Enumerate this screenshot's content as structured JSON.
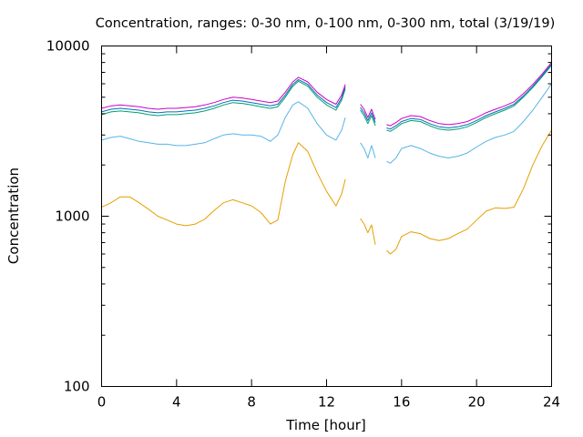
{
  "chart_data": {
    "type": "line",
    "title": "Concentration, ranges: 0-30 nm, 0-100 nm, 0-300 nm, total (3/19/19)",
    "xlabel": "Time [hour]",
    "ylabel": "Concentration",
    "xlim": [
      0,
      24
    ],
    "ylim": [
      100,
      10000
    ],
    "yscale": "log",
    "grid": false,
    "legend": "none",
    "x_ticks": [
      0,
      4,
      8,
      12,
      16,
      20,
      24
    ],
    "x_tick_labels": [
      "0",
      "4",
      "8",
      "12",
      "16",
      "20",
      "24"
    ],
    "y_ticks": [
      100,
      1000,
      10000
    ],
    "y_tick_labels": [
      "100",
      "1000",
      "10000"
    ],
    "series": [
      {
        "color": "#e69f00",
        "points": [
          [
            0,
            1130
          ],
          [
            0.5,
            1200
          ],
          [
            1,
            1300
          ],
          [
            1.5,
            1300
          ],
          [
            2,
            1200
          ],
          [
            2.5,
            1100
          ],
          [
            3,
            1000
          ],
          [
            3.5,
            950
          ],
          [
            4,
            900
          ],
          [
            4.5,
            880
          ],
          [
            5,
            900
          ],
          [
            5.5,
            960
          ],
          [
            6,
            1080
          ],
          [
            6.5,
            1200
          ],
          [
            7,
            1250
          ],
          [
            7.5,
            1200
          ],
          [
            8,
            1150
          ],
          [
            8.5,
            1050
          ],
          [
            9,
            900
          ],
          [
            9.4,
            950
          ],
          [
            9.8,
            1600
          ],
          [
            10.2,
            2300
          ],
          [
            10.5,
            2700
          ],
          [
            11,
            2400
          ],
          [
            11.5,
            1800
          ],
          [
            12,
            1400
          ],
          [
            12.5,
            1150
          ],
          [
            12.8,
            1350
          ],
          [
            13,
            1650
          ],
          null,
          [
            13.8,
            970
          ],
          [
            14,
            900
          ],
          [
            14.2,
            800
          ],
          [
            14.4,
            890
          ],
          [
            14.6,
            680
          ],
          null,
          [
            15.2,
            630
          ],
          [
            15.4,
            600
          ],
          [
            15.7,
            640
          ],
          [
            16,
            760
          ],
          [
            16.5,
            810
          ],
          [
            17,
            790
          ],
          [
            17.5,
            740
          ],
          [
            18,
            720
          ],
          [
            18.5,
            740
          ],
          [
            19,
            790
          ],
          [
            19.5,
            840
          ],
          [
            20,
            950
          ],
          [
            20.5,
            1070
          ],
          [
            21,
            1120
          ],
          [
            21.5,
            1110
          ],
          [
            22,
            1130
          ],
          [
            22.5,
            1450
          ],
          [
            23,
            2000
          ],
          [
            23.5,
            2600
          ],
          [
            24,
            3200
          ]
        ]
      },
      {
        "color": "#56b4e9",
        "points": [
          [
            0,
            2800
          ],
          [
            0.5,
            2900
          ],
          [
            1,
            2950
          ],
          [
            1.5,
            2850
          ],
          [
            2,
            2750
          ],
          [
            2.5,
            2700
          ],
          [
            3,
            2650
          ],
          [
            3.5,
            2650
          ],
          [
            4,
            2600
          ],
          [
            4.5,
            2600
          ],
          [
            5,
            2650
          ],
          [
            5.5,
            2700
          ],
          [
            6,
            2850
          ],
          [
            6.5,
            3000
          ],
          [
            7,
            3050
          ],
          [
            7.5,
            3000
          ],
          [
            8,
            3000
          ],
          [
            8.5,
            2950
          ],
          [
            9,
            2750
          ],
          [
            9.4,
            3000
          ],
          [
            9.8,
            3800
          ],
          [
            10.2,
            4500
          ],
          [
            10.5,
            4700
          ],
          [
            11,
            4300
          ],
          [
            11.5,
            3500
          ],
          [
            12,
            3000
          ],
          [
            12.5,
            2800
          ],
          [
            12.8,
            3200
          ],
          [
            13,
            3800
          ],
          null,
          [
            13.8,
            2700
          ],
          [
            14,
            2500
          ],
          [
            14.2,
            2200
          ],
          [
            14.4,
            2600
          ],
          [
            14.6,
            2200
          ],
          null,
          [
            15.2,
            2100
          ],
          [
            15.4,
            2050
          ],
          [
            15.7,
            2200
          ],
          [
            16,
            2500
          ],
          [
            16.5,
            2600
          ],
          [
            17,
            2500
          ],
          [
            17.5,
            2350
          ],
          [
            18,
            2250
          ],
          [
            18.5,
            2200
          ],
          [
            19,
            2250
          ],
          [
            19.5,
            2350
          ],
          [
            20,
            2550
          ],
          [
            20.5,
            2750
          ],
          [
            21,
            2900
          ],
          [
            21.5,
            3000
          ],
          [
            22,
            3150
          ],
          [
            22.5,
            3600
          ],
          [
            23,
            4200
          ],
          [
            23.5,
            5000
          ],
          [
            24,
            6000
          ]
        ]
      },
      {
        "color": "#009e73",
        "points": [
          [
            0,
            3950
          ],
          [
            0.5,
            4100
          ],
          [
            1,
            4150
          ],
          [
            1.5,
            4100
          ],
          [
            2,
            4050
          ],
          [
            2.5,
            3950
          ],
          [
            3,
            3900
          ],
          [
            3.5,
            3950
          ],
          [
            4,
            3950
          ],
          [
            4.5,
            4000
          ],
          [
            5,
            4050
          ],
          [
            5.5,
            4150
          ],
          [
            6,
            4300
          ],
          [
            6.5,
            4500
          ],
          [
            7,
            4650
          ],
          [
            7.5,
            4600
          ],
          [
            8,
            4500
          ],
          [
            8.5,
            4400
          ],
          [
            9,
            4300
          ],
          [
            9.4,
            4400
          ],
          [
            9.8,
            5000
          ],
          [
            10.2,
            5800
          ],
          [
            10.5,
            6200
          ],
          [
            11,
            5800
          ],
          [
            11.5,
            5000
          ],
          [
            12,
            4500
          ],
          [
            12.5,
            4200
          ],
          [
            12.8,
            4800
          ],
          [
            13,
            5600
          ],
          null,
          [
            13.8,
            4200
          ],
          [
            14,
            3900
          ],
          [
            14.2,
            3500
          ],
          [
            14.4,
            3900
          ],
          [
            14.6,
            3400
          ],
          null,
          [
            15.2,
            3200
          ],
          [
            15.4,
            3150
          ],
          [
            15.7,
            3300
          ],
          [
            16,
            3500
          ],
          [
            16.5,
            3650
          ],
          [
            17,
            3600
          ],
          [
            17.5,
            3400
          ],
          [
            18,
            3250
          ],
          [
            18.5,
            3200
          ],
          [
            19,
            3250
          ],
          [
            19.5,
            3350
          ],
          [
            20,
            3550
          ],
          [
            20.5,
            3800
          ],
          [
            21,
            4000
          ],
          [
            21.5,
            4200
          ],
          [
            22,
            4450
          ],
          [
            22.5,
            5000
          ],
          [
            23,
            5700
          ],
          [
            23.5,
            6600
          ],
          [
            24,
            7700
          ]
        ]
      },
      {
        "color": "#0072b2",
        "points": [
          [
            0,
            4100
          ],
          [
            0.5,
            4250
          ],
          [
            1,
            4300
          ],
          [
            1.5,
            4250
          ],
          [
            2,
            4200
          ],
          [
            2.5,
            4100
          ],
          [
            3,
            4050
          ],
          [
            3.5,
            4100
          ],
          [
            4,
            4100
          ],
          [
            4.5,
            4150
          ],
          [
            5,
            4200
          ],
          [
            5.5,
            4300
          ],
          [
            6,
            4450
          ],
          [
            6.5,
            4650
          ],
          [
            7,
            4800
          ],
          [
            7.5,
            4750
          ],
          [
            8,
            4650
          ],
          [
            8.5,
            4550
          ],
          [
            9,
            4450
          ],
          [
            9.4,
            4550
          ],
          [
            9.8,
            5150
          ],
          [
            10.2,
            5950
          ],
          [
            10.5,
            6350
          ],
          [
            11,
            5950
          ],
          [
            11.5,
            5150
          ],
          [
            12,
            4650
          ],
          [
            12.5,
            4350
          ],
          [
            12.8,
            4950
          ],
          [
            13,
            5750
          ],
          null,
          [
            13.8,
            4350
          ],
          [
            14,
            4050
          ],
          [
            14.2,
            3650
          ],
          [
            14.4,
            4050
          ],
          [
            14.6,
            3550
          ],
          null,
          [
            15.2,
            3300
          ],
          [
            15.4,
            3250
          ],
          [
            15.7,
            3400
          ],
          [
            16,
            3600
          ],
          [
            16.5,
            3750
          ],
          [
            17,
            3700
          ],
          [
            17.5,
            3500
          ],
          [
            18,
            3350
          ],
          [
            18.5,
            3300
          ],
          [
            19,
            3350
          ],
          [
            19.5,
            3450
          ],
          [
            20,
            3650
          ],
          [
            20.5,
            3900
          ],
          [
            21,
            4100
          ],
          [
            21.5,
            4300
          ],
          [
            22,
            4550
          ],
          [
            22.5,
            5100
          ],
          [
            23,
            5800
          ],
          [
            23.5,
            6700
          ],
          [
            24,
            7850
          ]
        ]
      },
      {
        "color": "#cc00cc",
        "points": [
          [
            0,
            4300
          ],
          [
            0.5,
            4450
          ],
          [
            1,
            4500
          ],
          [
            1.5,
            4450
          ],
          [
            2,
            4400
          ],
          [
            2.5,
            4300
          ],
          [
            3,
            4250
          ],
          [
            3.5,
            4300
          ],
          [
            4,
            4300
          ],
          [
            4.5,
            4350
          ],
          [
            5,
            4400
          ],
          [
            5.5,
            4500
          ],
          [
            6,
            4650
          ],
          [
            6.5,
            4850
          ],
          [
            7,
            5000
          ],
          [
            7.5,
            4950
          ],
          [
            8,
            4850
          ],
          [
            8.5,
            4750
          ],
          [
            9,
            4650
          ],
          [
            9.4,
            4750
          ],
          [
            9.8,
            5350
          ],
          [
            10.2,
            6150
          ],
          [
            10.5,
            6550
          ],
          [
            11,
            6150
          ],
          [
            11.5,
            5350
          ],
          [
            12,
            4850
          ],
          [
            12.5,
            4550
          ],
          [
            12.8,
            5150
          ],
          [
            13,
            5950
          ],
          null,
          [
            13.8,
            4550
          ],
          [
            14,
            4250
          ],
          [
            14.2,
            3800
          ],
          [
            14.4,
            4250
          ],
          [
            14.6,
            3700
          ],
          null,
          [
            15.2,
            3450
          ],
          [
            15.4,
            3400
          ],
          [
            15.7,
            3550
          ],
          [
            16,
            3750
          ],
          [
            16.5,
            3900
          ],
          [
            17,
            3850
          ],
          [
            17.5,
            3650
          ],
          [
            18,
            3500
          ],
          [
            18.5,
            3450
          ],
          [
            19,
            3500
          ],
          [
            19.5,
            3600
          ],
          [
            20,
            3800
          ],
          [
            20.5,
            4050
          ],
          [
            21,
            4250
          ],
          [
            21.5,
            4450
          ],
          [
            22,
            4700
          ],
          [
            22.5,
            5250
          ],
          [
            23,
            5950
          ],
          [
            23.5,
            6850
          ],
          [
            24,
            8000
          ]
        ]
      }
    ]
  }
}
